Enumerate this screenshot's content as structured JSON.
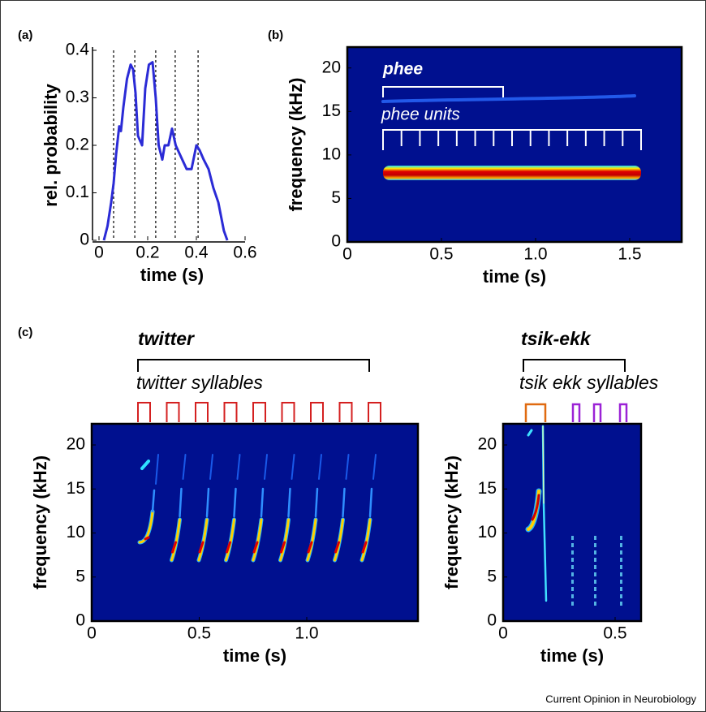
{
  "panel_labels": [
    "(a)",
    "(b)",
    "(c)"
  ],
  "footer": "Current Opinion in Neurobiology",
  "chart_data": [
    {
      "type": "line",
      "xlabel": "time (s)",
      "ylabel": "rel. probability",
      "color": "#2b2bd6",
      "x": [
        0.02,
        0.035,
        0.05,
        0.06,
        0.07,
        0.083,
        0.09,
        0.1,
        0.115,
        0.13,
        0.14,
        0.15,
        0.16,
        0.177,
        0.19,
        0.205,
        0.22,
        0.233,
        0.245,
        0.26,
        0.27,
        0.285,
        0.3,
        0.315,
        0.333,
        0.36,
        0.38,
        0.4,
        0.413,
        0.43,
        0.45,
        0.47,
        0.49,
        0.513,
        0.527
      ],
      "values": [
        0,
        0.03,
        0.08,
        0.12,
        0.18,
        0.24,
        0.23,
        0.28,
        0.34,
        0.37,
        0.36,
        0.31,
        0.22,
        0.2,
        0.32,
        0.37,
        0.375,
        0.3,
        0.2,
        0.17,
        0.2,
        0.2,
        0.235,
        0.2,
        0.18,
        0.15,
        0.15,
        0.2,
        0.19,
        0.17,
        0.15,
        0.11,
        0.08,
        0.02,
        0
      ],
      "vlines": [
        0.06,
        0.147,
        0.233,
        0.313,
        0.407
      ],
      "xlim": [
        0,
        0.6
      ],
      "ylim": [
        0,
        0.4
      ],
      "xticks": [
        0,
        0.2,
        0.4,
        0.6
      ],
      "yticks": [
        0,
        0.1,
        0.2,
        0.3,
        0.4
      ]
    },
    {
      "type": "spectrogram",
      "xlabel": "time (s)",
      "ylabel": "frequency (kHz)",
      "annotations": [
        "phee",
        "phee units"
      ],
      "xlim": [
        0,
        1.776
      ],
      "ylim": [
        0,
        22.4
      ],
      "xticks": [
        0,
        0.5,
        {
          "value": 1,
          "label": "1.0"
        },
        1.5
      ],
      "yticks": [
        0,
        5,
        10,
        15,
        20
      ]
    },
    {
      "type": "spectrogram",
      "xlabel": "time (s)",
      "ylabel": "frequency (kHz)",
      "annotations": [
        "twitter",
        "twitter syllables"
      ],
      "xlim": [
        0,
        1.517
      ],
      "ylim": [
        0,
        22.4
      ],
      "xticks": [
        0,
        0.5,
        {
          "value": 1,
          "label": "1.0"
        }
      ],
      "yticks": [
        0,
        5,
        10,
        15,
        20
      ]
    },
    {
      "type": "spectrogram",
      "xlabel": "time (s)",
      "ylabel": "frequency (kHz)",
      "annotations": [
        "tsik-ekk",
        "tsik ekk syllables"
      ],
      "xlim": [
        0,
        0.616
      ],
      "ylim": [
        0,
        22.4
      ],
      "xticks": [
        0,
        0.5
      ],
      "yticks": [
        0,
        5,
        10,
        15,
        20
      ]
    }
  ]
}
